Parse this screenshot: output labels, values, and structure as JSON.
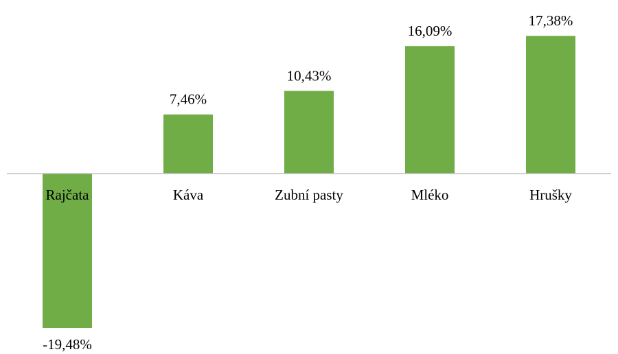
{
  "chart_data": {
    "type": "bar",
    "categories": [
      "Rajčata",
      "Káva",
      "Zubní pasty",
      "Mléko",
      "Hrušky"
    ],
    "values": [
      -19.48,
      7.46,
      10.43,
      16.09,
      17.38
    ],
    "value_labels": [
      "-19,48%",
      "7,46%",
      "10,43%",
      "16,09%",
      "17,38%"
    ],
    "color": "#70ad47",
    "ylim": [
      -20,
      20
    ]
  }
}
